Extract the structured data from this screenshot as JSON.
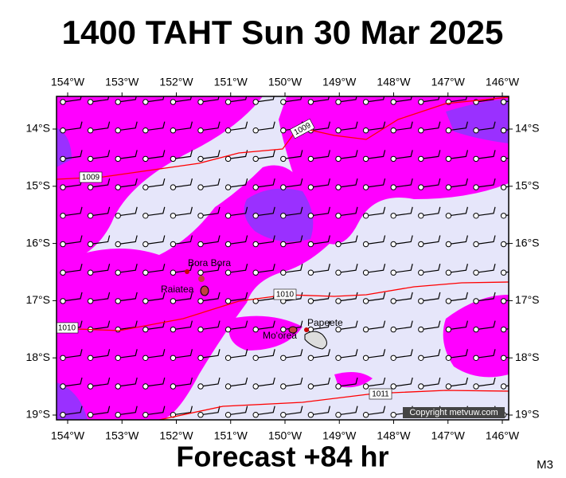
{
  "title": "1400 TAHT Sun 30 Mar 2025",
  "lon_labels": [
    "154°W",
    "153°W",
    "152°W",
    "151°W",
    "150°W",
    "149°W",
    "148°W",
    "147°W",
    "146°W"
  ],
  "lat_labels": [
    "14°S",
    "15°S",
    "16°S",
    "17°S",
    "18°S",
    "19°S"
  ],
  "places": [
    "Bora Bora",
    "Raiatea",
    "Mo'orea",
    "Papeete"
  ],
  "isobar_labels": [
    "1009",
    "1009",
    "1010",
    "1010",
    "1011"
  ],
  "copyright": "Copyright metvuw.com",
  "footer": "Forecast +84 hr",
  "model": "M3"
}
